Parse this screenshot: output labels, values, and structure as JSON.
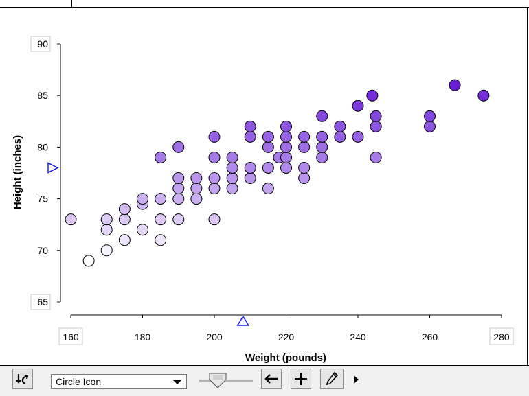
{
  "chart_data": {
    "type": "scatter",
    "xlabel": "Weight (pounds)",
    "ylabel": "Height (inches)",
    "xlim": [
      160,
      280
    ],
    "ylim": [
      65,
      90
    ],
    "x_ticks": [
      "160",
      "180",
      "200",
      "220",
      "240",
      "260",
      "280"
    ],
    "y_ticks": [
      "65",
      "70",
      "75",
      "80",
      "85",
      "90"
    ],
    "x_slider_value": 208,
    "y_slider_value": 78,
    "color_scale": {
      "low": "#ffffff",
      "high": "#6a1fd6",
      "stroke": "#000000"
    },
    "points": [
      [
        160,
        73
      ],
      [
        165,
        69
      ],
      [
        170,
        70
      ],
      [
        170,
        72
      ],
      [
        170,
        73
      ],
      [
        175,
        71
      ],
      [
        175,
        73
      ],
      [
        175,
        74
      ],
      [
        180,
        72
      ],
      [
        180,
        74.5
      ],
      [
        180,
        75
      ],
      [
        185,
        71
      ],
      [
        185,
        73
      ],
      [
        185,
        75
      ],
      [
        185,
        79
      ],
      [
        190,
        73
      ],
      [
        190,
        75
      ],
      [
        190,
        76
      ],
      [
        190,
        77
      ],
      [
        190,
        80
      ],
      [
        195,
        75
      ],
      [
        195,
        76
      ],
      [
        195,
        77
      ],
      [
        200,
        73
      ],
      [
        200,
        76
      ],
      [
        200,
        77
      ],
      [
        200,
        79
      ],
      [
        200,
        81
      ],
      [
        205,
        76
      ],
      [
        205,
        77
      ],
      [
        205,
        78
      ],
      [
        205,
        79
      ],
      [
        210,
        77
      ],
      [
        210,
        78
      ],
      [
        210,
        81
      ],
      [
        210,
        82
      ],
      [
        215,
        76
      ],
      [
        215,
        78
      ],
      [
        215,
        80
      ],
      [
        215,
        81
      ],
      [
        218,
        79
      ],
      [
        220,
        78
      ],
      [
        220,
        79
      ],
      [
        220,
        80
      ],
      [
        220,
        81
      ],
      [
        220,
        82
      ],
      [
        225,
        77
      ],
      [
        225,
        78
      ],
      [
        225,
        80
      ],
      [
        225,
        81
      ],
      [
        230,
        79
      ],
      [
        230,
        80
      ],
      [
        230,
        81
      ],
      [
        230,
        83
      ],
      [
        235,
        81
      ],
      [
        235,
        82
      ],
      [
        240,
        81
      ],
      [
        240,
        84
      ],
      [
        244,
        85
      ],
      [
        245,
        79
      ],
      [
        245,
        82
      ],
      [
        245,
        83
      ],
      [
        260,
        82
      ],
      [
        260,
        83
      ],
      [
        267,
        86
      ],
      [
        275,
        85
      ]
    ]
  },
  "toolbar": {
    "shape_select_value": "Circle Icon",
    "icons": {
      "rescale": "rescale-arrows-icon",
      "shape_dropdown": "chevron-down-icon",
      "slider": "size-slider-thumb-icon",
      "back": "back-arrow-icon",
      "crosshair": "crosshair-icon",
      "pencil": "pencil-icon",
      "play": "play-triangle-icon"
    }
  }
}
